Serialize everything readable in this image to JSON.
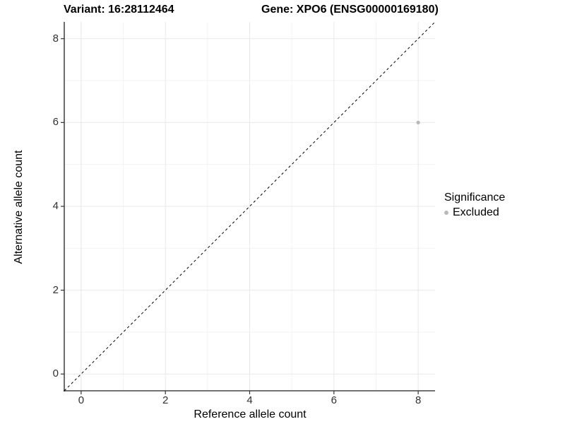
{
  "chart_data": {
    "type": "scatter",
    "title_left": "Variant: 16:28112464",
    "title_right": "Gene: XPO6 (ENSG00000169180)",
    "xlabel": "Reference allele count",
    "ylabel": "Alternative allele count",
    "xlim": [
      -0.4,
      8.4
    ],
    "ylim": [
      -0.4,
      8.4
    ],
    "x_ticks": [
      "0",
      "2",
      "4",
      "6",
      "8"
    ],
    "y_ticks": [
      "0",
      "2",
      "4",
      "6",
      "8"
    ],
    "x_tick_values": [
      0,
      2,
      4,
      6,
      8
    ],
    "y_tick_values": [
      0,
      2,
      4,
      6,
      8
    ],
    "x_minor_tick_values": [
      1,
      3,
      5,
      7
    ],
    "y_minor_tick_values": [
      1,
      3,
      5,
      7
    ],
    "grid": true,
    "reference_line": {
      "type": "identity",
      "slope": 1,
      "intercept": 0,
      "style": "dashed"
    },
    "series": [
      {
        "name": "Excluded",
        "points": [
          {
            "x": 8,
            "y": 6
          }
        ]
      }
    ],
    "legend": {
      "position": "right",
      "title": "Significance",
      "items": [
        {
          "label": "Excluded",
          "color": "#b9b9b9"
        }
      ]
    },
    "colors": {
      "point": "#b9b9b9",
      "grid_major": "#e8e8e8",
      "grid_minor": "#f3f3f3",
      "axis_line": "#1f1f1f",
      "tick_mark": "#333333",
      "identity_line": "#000000",
      "panel_background": "#ffffff"
    }
  }
}
